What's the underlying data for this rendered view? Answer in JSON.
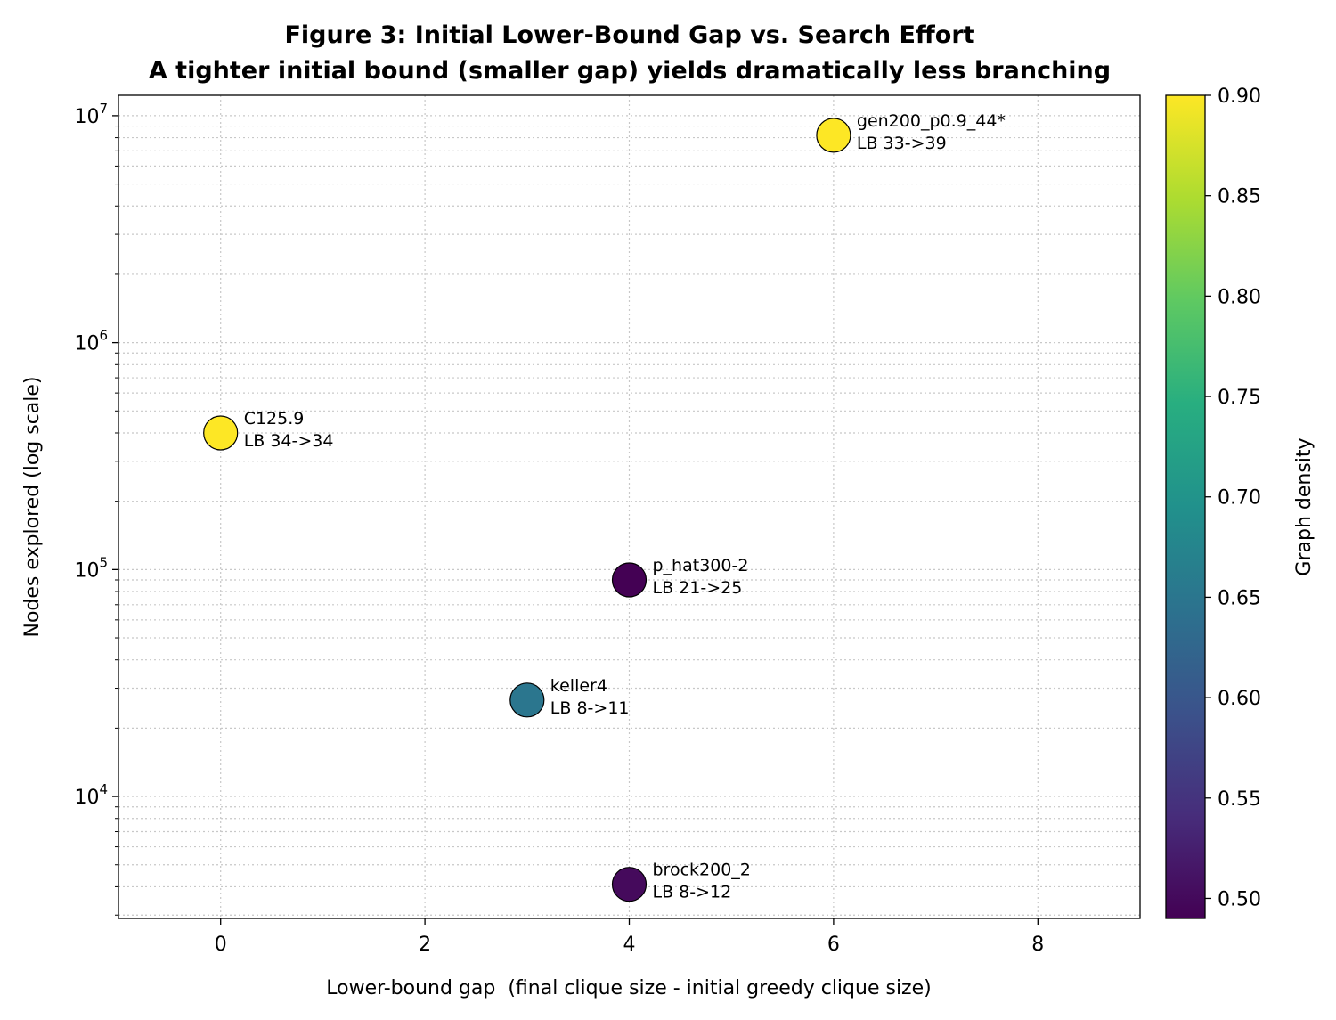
{
  "chart_data": {
    "type": "scatter",
    "title": "Figure 3: Initial Lower-Bound Gap vs. Search Effort",
    "subtitle": "A tighter initial bound (smaller gap) yields dramatically less branching",
    "xlabel": "Lower-bound gap  (final clique size - initial greedy clique size)",
    "ylabel": "Nodes explored (log scale)",
    "xlim": [
      -1,
      9
    ],
    "ylim": [
      2900,
      12300000
    ],
    "y_scale": "log",
    "x_ticks": [
      0,
      2,
      4,
      6,
      8
    ],
    "y_ticks": [
      {
        "value": 10000,
        "base": "10",
        "exp": "4"
      },
      {
        "value": 100000,
        "base": "10",
        "exp": "5"
      },
      {
        "value": 1000000,
        "base": "10",
        "exp": "6"
      },
      {
        "value": 10000000,
        "base": "10",
        "exp": "7"
      }
    ],
    "grid": true,
    "colorbar": {
      "label": "Graph density",
      "colormap": "viridis",
      "range": [
        0.49,
        0.9
      ],
      "ticks": [
        "0.50",
        "0.55",
        "0.60",
        "0.65",
        "0.70",
        "0.75",
        "0.80",
        "0.85",
        "0.90"
      ]
    },
    "points": [
      {
        "name": "gen200_p0.9_44*",
        "label": "LB 33->39",
        "x": 6,
        "y": 8200000,
        "density": 0.9
      },
      {
        "name": "C125.9",
        "label": "LB 34->34",
        "x": 0,
        "y": 400000,
        "density": 0.9
      },
      {
        "name": "p_hat300-2",
        "label": "LB 21->25",
        "x": 4,
        "y": 90000,
        "density": 0.49
      },
      {
        "name": "keller4",
        "label": "LB 8->11",
        "x": 3,
        "y": 26600,
        "density": 0.65
      },
      {
        "name": "brock200_2",
        "label": "LB 8->12",
        "x": 4,
        "y": 4100,
        "density": 0.5
      }
    ]
  }
}
